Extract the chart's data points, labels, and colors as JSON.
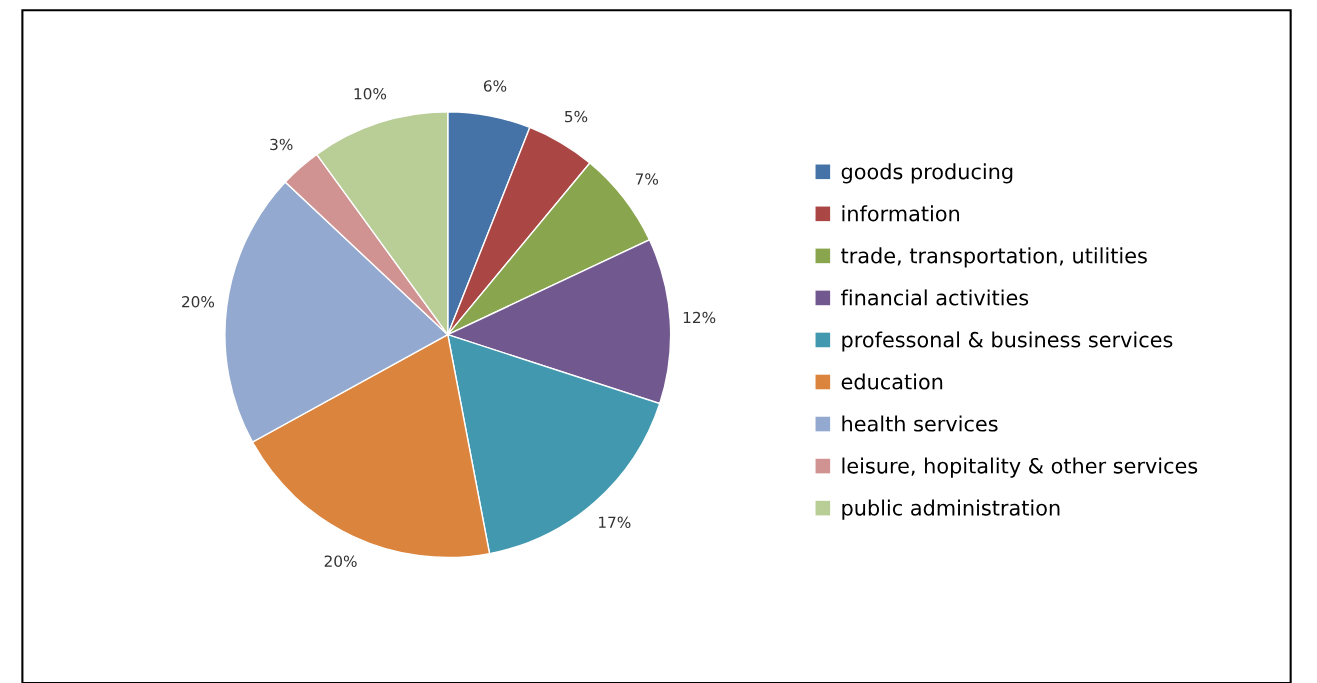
{
  "chart_data": {
    "type": "pie",
    "categories": [
      "goods producing",
      "information",
      "trade, transportation, utilities",
      "financial activities",
      "professonal & business services",
      "education",
      "health services",
      "leisure, hopitality & other services",
      "public administration"
    ],
    "values": [
      6,
      5,
      7,
      12,
      17,
      20,
      20,
      3,
      10
    ],
    "value_labels": [
      "6%",
      "5%",
      "7%",
      "12%",
      "17%",
      "20%",
      "20%",
      "3%",
      "10%"
    ],
    "colors": [
      "#4572a7",
      "#aa4643",
      "#89a54e",
      "#71588f",
      "#4198af",
      "#db843d",
      "#93a9cf",
      "#d19392",
      "#b9cd96"
    ],
    "legend": "right"
  }
}
